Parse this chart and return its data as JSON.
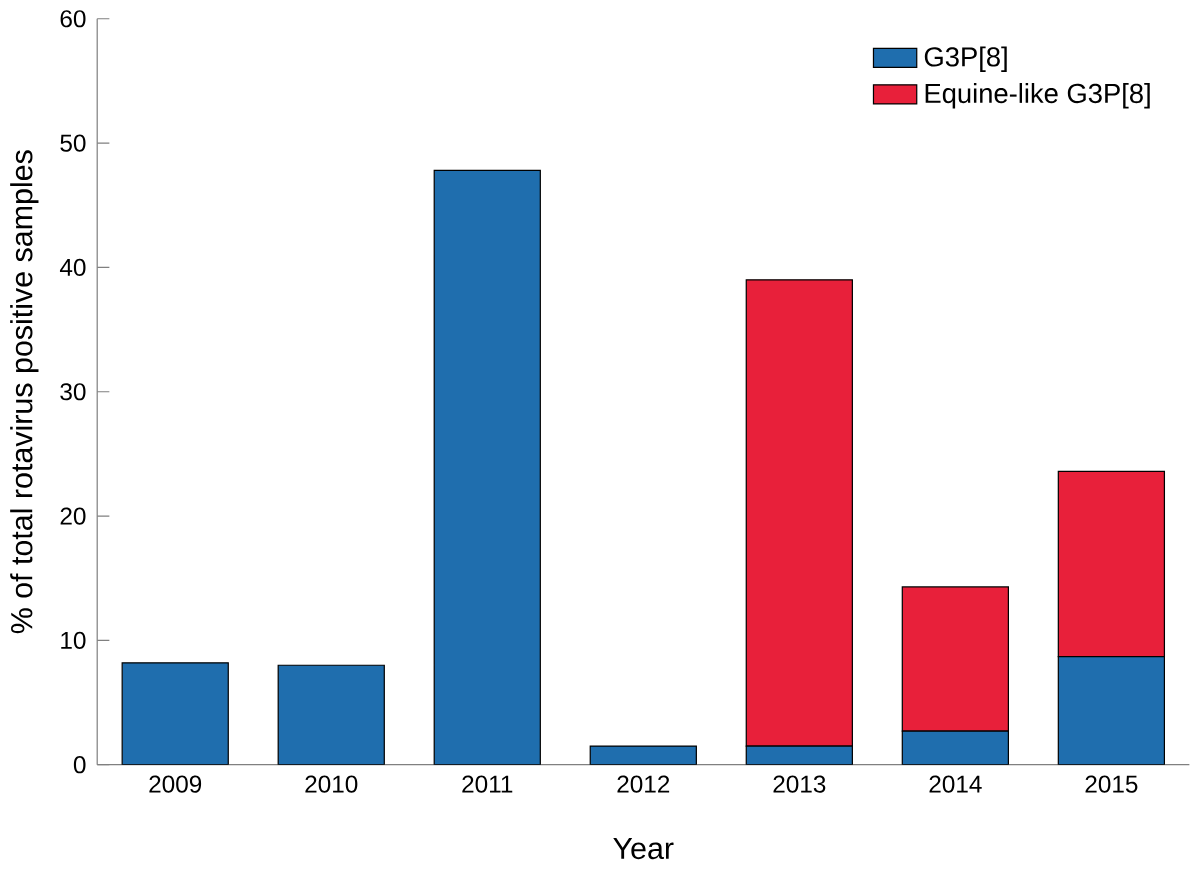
{
  "chart_data": {
    "type": "bar",
    "stacked": true,
    "xlabel": "Year",
    "ylabel": "% of total rotavirus positive samples",
    "categories": [
      "2009",
      "2010",
      "2011",
      "2012",
      "2013",
      "2014",
      "2015"
    ],
    "series": [
      {
        "name": "G3P[8]",
        "color": "#1f6eae",
        "values": [
          8.2,
          8.0,
          47.8,
          1.5,
          1.5,
          2.7,
          8.7
        ]
      },
      {
        "name": "Equine-like G3P[8]",
        "color": "#e8203a",
        "values": [
          null,
          null,
          null,
          null,
          37.5,
          11.6,
          14.9
        ]
      }
    ],
    "ylim": [
      0,
      60
    ],
    "yticks": [
      0,
      10,
      20,
      30,
      40,
      50,
      60
    ],
    "legend": "top right"
  }
}
